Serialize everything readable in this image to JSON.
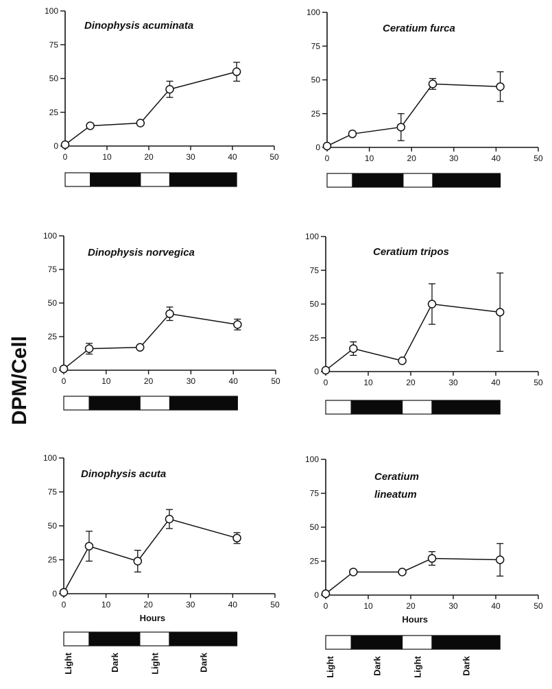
{
  "figure": {
    "ylabel": "DPM/Cell",
    "colors": {
      "ink": "#111111",
      "light": "#ffffff",
      "dark": "#0a0a0a"
    }
  },
  "chart_data": [
    {
      "type": "line",
      "title": "Dinophysis acuminata",
      "xlim": [
        0,
        50
      ],
      "ylim": [
        0,
        100
      ],
      "xticks": [
        0,
        10,
        20,
        30,
        40,
        50
      ],
      "yticks": [
        0,
        25,
        50,
        75,
        100
      ],
      "x": [
        0,
        6,
        18,
        25,
        41
      ],
      "values": [
        1,
        15,
        17,
        42,
        55
      ],
      "errors": [
        0,
        0,
        0,
        6,
        7
      ],
      "light_dark": [
        {
          "phase": "Light",
          "start": 0,
          "end": 6
        },
        {
          "phase": "Dark",
          "start": 6,
          "end": 18
        },
        {
          "phase": "Light",
          "start": 18,
          "end": 25
        },
        {
          "phase": "Dark",
          "start": 25,
          "end": 41
        }
      ],
      "xlabel": ""
    },
    {
      "type": "line",
      "title": "Ceratium furca",
      "xlim": [
        0,
        50
      ],
      "ylim": [
        0,
        100
      ],
      "xticks": [
        0,
        10,
        20,
        30,
        40,
        50
      ],
      "yticks": [
        0,
        25,
        50,
        75,
        100
      ],
      "x": [
        0,
        6,
        17.5,
        25,
        41
      ],
      "values": [
        1,
        10,
        15,
        47,
        45
      ],
      "errors": [
        0,
        0,
        10,
        4,
        11
      ],
      "light_dark": [
        {
          "phase": "Light",
          "start": 0,
          "end": 6
        },
        {
          "phase": "Dark",
          "start": 6,
          "end": 18
        },
        {
          "phase": "Light",
          "start": 18,
          "end": 25
        },
        {
          "phase": "Dark",
          "start": 25,
          "end": 41
        }
      ],
      "xlabel": ""
    },
    {
      "type": "line",
      "title": "Dinophysis norvegica",
      "xlim": [
        0,
        50
      ],
      "ylim": [
        0,
        100
      ],
      "xticks": [
        0,
        10,
        20,
        30,
        40,
        50
      ],
      "yticks": [
        0,
        25,
        50,
        75,
        100
      ],
      "x": [
        0,
        6,
        18,
        25,
        41
      ],
      "values": [
        1,
        16,
        17,
        42,
        34
      ],
      "errors": [
        0,
        4,
        0,
        5,
        4
      ],
      "light_dark": [
        {
          "phase": "Light",
          "start": 0,
          "end": 6
        },
        {
          "phase": "Dark",
          "start": 6,
          "end": 18
        },
        {
          "phase": "Light",
          "start": 18,
          "end": 25
        },
        {
          "phase": "Dark",
          "start": 25,
          "end": 41
        }
      ],
      "xlabel": ""
    },
    {
      "type": "line",
      "title": "Ceratium tripos",
      "xlim": [
        0,
        50
      ],
      "ylim": [
        0,
        100
      ],
      "xticks": [
        0,
        10,
        20,
        30,
        40,
        50
      ],
      "yticks": [
        0,
        25,
        50,
        75,
        100
      ],
      "x": [
        0,
        6.5,
        18,
        25,
        41
      ],
      "values": [
        1,
        17,
        8,
        50,
        44
      ],
      "errors": [
        0,
        5,
        0,
        15,
        29
      ],
      "light_dark": [
        {
          "phase": "Light",
          "start": 0,
          "end": 6
        },
        {
          "phase": "Dark",
          "start": 6,
          "end": 18
        },
        {
          "phase": "Light",
          "start": 18,
          "end": 25
        },
        {
          "phase": "Dark",
          "start": 25,
          "end": 41
        }
      ],
      "xlabel": ""
    },
    {
      "type": "line",
      "title": "Dinophysis acuta",
      "xlim": [
        0,
        50
      ],
      "ylim": [
        0,
        100
      ],
      "xticks": [
        0,
        10,
        20,
        30,
        40,
        50
      ],
      "yticks": [
        0,
        25,
        50,
        75,
        100
      ],
      "x": [
        0,
        6,
        17.5,
        25,
        41
      ],
      "values": [
        1,
        35,
        24,
        55,
        41
      ],
      "errors": [
        0,
        11,
        8,
        7,
        4
      ],
      "light_dark": [
        {
          "phase": "Light",
          "start": 0,
          "end": 6
        },
        {
          "phase": "Dark",
          "start": 6,
          "end": 18
        },
        {
          "phase": "Light",
          "start": 18,
          "end": 25
        },
        {
          "phase": "Dark",
          "start": 25,
          "end": 41
        }
      ],
      "xlabel": "Hours",
      "phase_labels": [
        "Light",
        "Dark",
        "Light",
        "Dark"
      ]
    },
    {
      "type": "line",
      "title_lines": [
        "Ceratium",
        "lineatum"
      ],
      "xlim": [
        0,
        50
      ],
      "ylim": [
        0,
        100
      ],
      "xticks": [
        0,
        10,
        20,
        30,
        40,
        50
      ],
      "yticks": [
        0,
        25,
        50,
        75,
        100
      ],
      "x": [
        0,
        6.5,
        18,
        25,
        41
      ],
      "values": [
        1,
        17,
        17,
        27,
        26
      ],
      "errors": [
        0,
        0,
        0,
        5,
        12
      ],
      "light_dark": [
        {
          "phase": "Light",
          "start": 0,
          "end": 6
        },
        {
          "phase": "Dark",
          "start": 6,
          "end": 18
        },
        {
          "phase": "Light",
          "start": 18,
          "end": 25
        },
        {
          "phase": "Dark",
          "start": 25,
          "end": 41
        }
      ],
      "xlabel": "Hours",
      "phase_labels": [
        "Light",
        "Dark",
        "Light",
        "Dark"
      ]
    }
  ]
}
